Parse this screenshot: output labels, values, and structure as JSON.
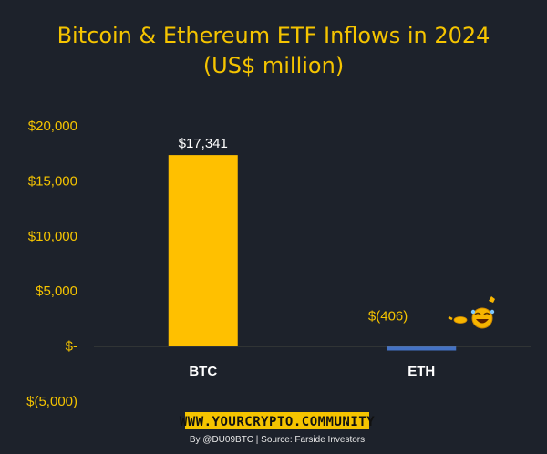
{
  "chart_data": {
    "type": "bar",
    "title_line1": "Bitcoin & Ethereum ETF Inflows in 2024",
    "title_line2": "(US$ million)",
    "categories": [
      "BTC",
      "ETH"
    ],
    "values": [
      17341,
      -406
    ],
    "data_labels": [
      "$17,341",
      "$(406)"
    ],
    "colors": [
      "#ffc000",
      "#4472c4"
    ],
    "ylim": [
      -5000,
      20000
    ],
    "yticks": [
      20000,
      15000,
      10000,
      5000,
      0,
      -5000
    ],
    "ytick_labels": [
      "$20,000",
      "$15,000",
      "$10,000",
      "$5,000",
      "$-",
      "$(5,000)"
    ],
    "grid": false,
    "legend": "none"
  },
  "footer": {
    "watermark": "WWW.YOURCRYPTO.COMMUNITY",
    "credit": "By @DU09BTC | Source: Farside Investors"
  },
  "icons": {
    "eth_label_decoration": "laughing-emoji-pointing-icon"
  },
  "colors": {
    "background": "#1d222b",
    "title": "#f5c400",
    "axis_labels": "#f5c400",
    "category_labels": "#ffffff",
    "watermark_bg": "#f5c400"
  }
}
